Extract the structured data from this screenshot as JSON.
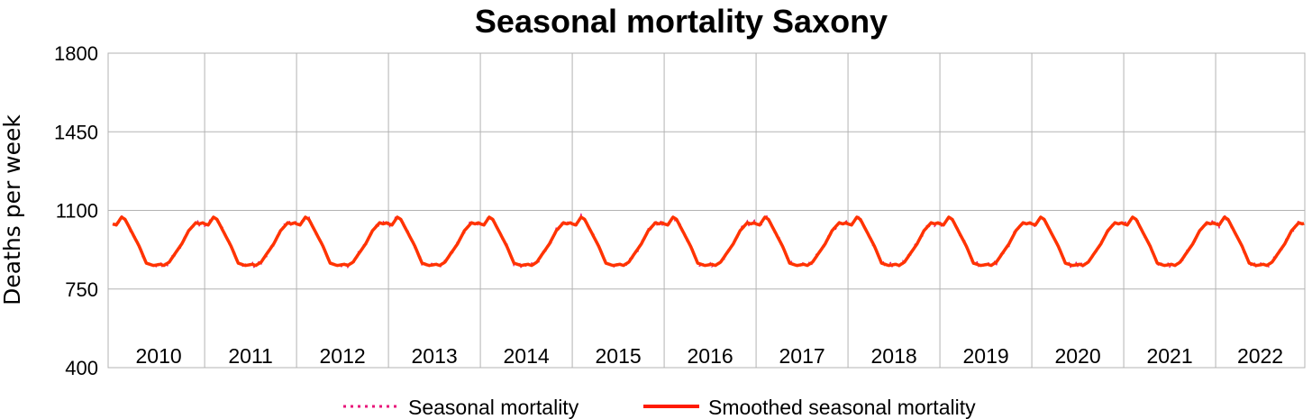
{
  "chart_data": {
    "type": "line",
    "title": "Seasonal mortality Saxony",
    "ylabel": "Deaths per week",
    "xlabel": "",
    "ylim": [
      400,
      1800
    ],
    "yticks": [
      400,
      750,
      1100,
      1450,
      1800
    ],
    "ytick_labels": [
      "400",
      "750",
      "1100",
      "1450",
      "1800"
    ],
    "year_labels": [
      "2010",
      "2011",
      "2012",
      "2013",
      "2014",
      "2015",
      "2016",
      "2017",
      "2018",
      "2019",
      "2020",
      "2021",
      "2022"
    ],
    "x_range_years": [
      2009.95,
      2022.97
    ],
    "grid": true,
    "legend_position": "bottom",
    "weekly_profile_weeks": [
      1,
      3,
      6,
      8,
      12,
      16,
      20,
      24,
      28,
      30,
      33,
      36,
      40,
      44,
      48,
      50,
      52
    ],
    "weekly_profile_deaths": [
      1040,
      1035,
      1070,
      1060,
      1000,
      940,
      865,
      855,
      860,
      855,
      870,
      905,
      950,
      1010,
      1045,
      1040,
      1045
    ],
    "series": [
      {
        "name": "Seasonal mortality",
        "color": "#e8157a",
        "style": "dotted"
      },
      {
        "name": "Smoothed seasonal mortality",
        "color": "#ff3300",
        "style": "solid"
      }
    ]
  }
}
